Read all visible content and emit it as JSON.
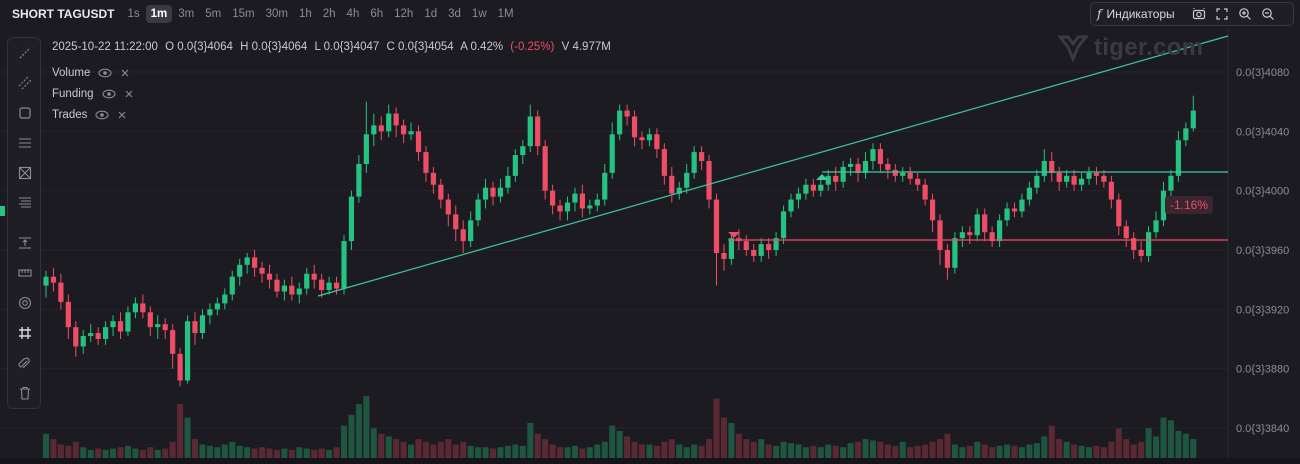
{
  "header": {
    "symbol": "SHORT TAGUSDT",
    "timeframes": [
      "1s",
      "1m",
      "3m",
      "5m",
      "15m",
      "30m",
      "1h",
      "2h",
      "4h",
      "6h",
      "12h",
      "1d",
      "3d",
      "1w",
      "1M"
    ],
    "active_timeframe": "1m",
    "indicators_label": "Индикаторы",
    "right_icons": [
      "camera-icon",
      "fullscreen-icon",
      "zoom-in-icon",
      "zoom-out-icon"
    ]
  },
  "toolbar": {
    "tools": [
      "trend-line-icon",
      "parallel-channel-icon",
      "rectangle-icon",
      "horizontal-lines-icon",
      "box-cross-icon",
      "fib-levels-icon",
      "range-icon",
      "ruler-icon",
      "eye-icon",
      "grid-icon",
      "magnet-icon",
      "trash-icon"
    ]
  },
  "ohlc": {
    "datetime": "2025-10-22 11:22:00",
    "open": "O 0.0{3}4064",
    "high": "H 0.0{3}4064",
    "low": "L 0.0{3}4047",
    "close": "C 0.0{3}4054",
    "amplitude": "A 0.42%",
    "change": "(-0.25%)",
    "volume": "V 4.977M"
  },
  "legend": [
    {
      "name": "Volume"
    },
    {
      "name": "Funding"
    },
    {
      "name": "Trades"
    }
  ],
  "watermark": "tiger.com",
  "measure_badge": "-1.16%",
  "colors": {
    "background": "#1c1b22",
    "up": "#26c281",
    "down": "#ef4d65",
    "trendline": "#3fc9a0",
    "grid": "#26252d"
  },
  "chart_data": {
    "type": "candlestick",
    "price_axis_ticks": [
      "0.0{3}4080",
      "0.0{3}4040",
      "0.0{3}4000",
      "0.0{3}3960",
      "0.0{3}3920",
      "0.0{3}3880",
      "0.0{3}3840"
    ],
    "tick_values": [
      4080,
      4040,
      4000,
      3960,
      3920,
      3880,
      3840
    ],
    "candles": [
      [
        3936,
        3942,
        3928,
        3946
      ],
      [
        3942,
        3938,
        3932,
        3948
      ],
      [
        3938,
        3925,
        3920,
        3944
      ],
      [
        3925,
        3908,
        3900,
        3930
      ],
      [
        3908,
        3895,
        3888,
        3912
      ],
      [
        3895,
        3902,
        3890,
        3906
      ],
      [
        3902,
        3904,
        3898,
        3910
      ],
      [
        3904,
        3900,
        3896,
        3908
      ],
      [
        3900,
        3908,
        3896,
        3912
      ],
      [
        3908,
        3912,
        3902,
        3916
      ],
      [
        3912,
        3905,
        3900,
        3918
      ],
      [
        3905,
        3918,
        3902,
        3922
      ],
      [
        3918,
        3924,
        3914,
        3928
      ],
      [
        3924,
        3918,
        3914,
        3930
      ],
      [
        3918,
        3908,
        3902,
        3922
      ],
      [
        3908,
        3910,
        3900,
        3916
      ],
      [
        3910,
        3906,
        3900,
        3914
      ],
      [
        3906,
        3890,
        3880,
        3910
      ],
      [
        3890,
        3872,
        3868,
        3894
      ],
      [
        3872,
        3912,
        3870,
        3916
      ],
      [
        3912,
        3904,
        3896,
        3918
      ],
      [
        3904,
        3916,
        3900,
        3920
      ],
      [
        3916,
        3920,
        3910,
        3924
      ],
      [
        3920,
        3924,
        3916,
        3928
      ],
      [
        3924,
        3930,
        3920,
        3934
      ],
      [
        3930,
        3942,
        3926,
        3946
      ],
      [
        3942,
        3950,
        3936,
        3954
      ],
      [
        3950,
        3955,
        3944,
        3958
      ],
      [
        3955,
        3948,
        3942,
        3960
      ],
      [
        3948,
        3944,
        3938,
        3952
      ],
      [
        3944,
        3940,
        3934,
        3950
      ],
      [
        3940,
        3932,
        3928,
        3944
      ],
      [
        3932,
        3936,
        3926,
        3940
      ],
      [
        3936,
        3930,
        3926,
        3942
      ],
      [
        3930,
        3934,
        3924,
        3938
      ],
      [
        3934,
        3944,
        3930,
        3948
      ],
      [
        3944,
        3940,
        3934,
        3950
      ],
      [
        3940,
        3933,
        3928,
        3944
      ],
      [
        3933,
        3938,
        3930,
        3942
      ],
      [
        3938,
        3934,
        3930,
        3942
      ],
      [
        3934,
        3966,
        3930,
        3970
      ],
      [
        3966,
        3996,
        3960,
        4000
      ],
      [
        3996,
        4018,
        3992,
        4024
      ],
      [
        4018,
        4038,
        4012,
        4060
      ],
      [
        4038,
        4044,
        4030,
        4052
      ],
      [
        4044,
        4040,
        4034,
        4050
      ],
      [
        4040,
        4052,
        4036,
        4058
      ],
      [
        4052,
        4044,
        4036,
        4056
      ],
      [
        4044,
        4038,
        4032,
        4048
      ],
      [
        4038,
        4040,
        4034,
        4046
      ],
      [
        4040,
        4026,
        4020,
        4044
      ],
      [
        4026,
        4012,
        4006,
        4030
      ],
      [
        4012,
        4004,
        3998,
        4016
      ],
      [
        4004,
        3994,
        3988,
        4008
      ],
      [
        3994,
        3984,
        3976,
        3998
      ],
      [
        3984,
        3974,
        3966,
        3990
      ],
      [
        3974,
        3966,
        3958,
        3980
      ],
      [
        3966,
        3980,
        3962,
        3986
      ],
      [
        3980,
        3994,
        3976,
        3998
      ],
      [
        3994,
        4002,
        3988,
        4008
      ],
      [
        4002,
        3996,
        3990,
        4006
      ],
      [
        3996,
        4002,
        3992,
        4008
      ],
      [
        4002,
        4010,
        3998,
        4016
      ],
      [
        4010,
        4024,
        4006,
        4028
      ],
      [
        4024,
        4030,
        4018,
        4034
      ],
      [
        4030,
        4050,
        4026,
        4058
      ],
      [
        4050,
        4030,
        4024,
        4054
      ],
      [
        4030,
        4000,
        3994,
        4034
      ],
      [
        4000,
        3990,
        3984,
        4004
      ],
      [
        3990,
        3986,
        3980,
        3994
      ],
      [
        3986,
        3992,
        3980,
        3996
      ],
      [
        3992,
        3998,
        3986,
        4002
      ],
      [
        3998,
        3988,
        3982,
        4004
      ],
      [
        3988,
        3990,
        3984,
        3994
      ],
      [
        3990,
        3994,
        3986,
        3998
      ],
      [
        3994,
        4012,
        3990,
        4018
      ],
      [
        4012,
        4038,
        4008,
        4046
      ],
      [
        4038,
        4054,
        4034,
        4058
      ],
      [
        4054,
        4050,
        4044,
        4058
      ],
      [
        4050,
        4036,
        4030,
        4054
      ],
      [
        4036,
        4034,
        4028,
        4040
      ],
      [
        4034,
        4038,
        4030,
        4042
      ],
      [
        4038,
        4028,
        4022,
        4042
      ],
      [
        4028,
        4010,
        4004,
        4032
      ],
      [
        4010,
        3998,
        3992,
        4016
      ],
      [
        3998,
        4002,
        3994,
        4006
      ],
      [
        4002,
        4012,
        3998,
        4018
      ],
      [
        4012,
        4026,
        4008,
        4030
      ],
      [
        4026,
        4020,
        4014,
        4030
      ],
      [
        4020,
        3994,
        3988,
        4024
      ],
      [
        3994,
        3958,
        3936,
        3998
      ],
      [
        3958,
        3954,
        3946,
        3964
      ],
      [
        3954,
        3968,
        3950,
        3972
      ],
      [
        3968,
        3966,
        3960,
        3974
      ],
      [
        3966,
        3960,
        3956,
        3970
      ],
      [
        3960,
        3956,
        3952,
        3964
      ],
      [
        3956,
        3964,
        3952,
        3968
      ],
      [
        3964,
        3960,
        3954,
        3968
      ],
      [
        3960,
        3968,
        3956,
        3972
      ],
      [
        3968,
        3986,
        3964,
        3990
      ],
      [
        3986,
        3994,
        3982,
        3998
      ],
      [
        3994,
        3998,
        3988,
        4002
      ],
      [
        3998,
        4004,
        3994,
        4008
      ],
      [
        4004,
        4000,
        3996,
        4008
      ],
      [
        4000,
        4004,
        3996,
        4008
      ],
      [
        4004,
        4010,
        4000,
        4014
      ],
      [
        4010,
        4006,
        4000,
        4016
      ],
      [
        4006,
        4016,
        4002,
        4020
      ],
      [
        4016,
        4018,
        4010,
        4022
      ],
      [
        4018,
        4012,
        4006,
        4022
      ],
      [
        4012,
        4020,
        4008,
        4026
      ],
      [
        4020,
        4028,
        4014,
        4032
      ],
      [
        4028,
        4018,
        4012,
        4032
      ],
      [
        4018,
        4014,
        4008,
        4022
      ],
      [
        4014,
        4010,
        4006,
        4018
      ],
      [
        4010,
        4012,
        4006,
        4016
      ],
      [
        4012,
        4008,
        4004,
        4016
      ],
      [
        4008,
        4004,
        4000,
        4012
      ],
      [
        4004,
        3994,
        3990,
        4008
      ],
      [
        3994,
        3980,
        3972,
        3998
      ],
      [
        3980,
        3960,
        3950,
        3984
      ],
      [
        3960,
        3948,
        3940,
        3964
      ],
      [
        3948,
        3968,
        3944,
        3972
      ],
      [
        3968,
        3972,
        3962,
        3976
      ],
      [
        3972,
        3970,
        3964,
        3976
      ],
      [
        3970,
        3984,
        3966,
        3988
      ],
      [
        3984,
        3972,
        3966,
        3988
      ],
      [
        3972,
        3966,
        3962,
        3976
      ],
      [
        3966,
        3980,
        3962,
        3984
      ],
      [
        3980,
        3988,
        3976,
        3992
      ],
      [
        3988,
        3986,
        3982,
        3992
      ],
      [
        3986,
        3994,
        3982,
        3998
      ],
      [
        3994,
        4002,
        3990,
        4006
      ],
      [
        4002,
        4010,
        3998,
        4014
      ],
      [
        4010,
        4020,
        4006,
        4028
      ],
      [
        4020,
        4012,
        4006,
        4026
      ],
      [
        4012,
        4006,
        4000,
        4016
      ],
      [
        4006,
        4010,
        4002,
        4014
      ],
      [
        4010,
        4004,
        4000,
        4014
      ],
      [
        4004,
        4008,
        4000,
        4012
      ],
      [
        4008,
        4012,
        4004,
        4016
      ],
      [
        4012,
        4010,
        4004,
        4016
      ],
      [
        4010,
        4006,
        4002,
        4014
      ],
      [
        4006,
        3994,
        3988,
        4010
      ],
      [
        3994,
        3976,
        3970,
        3998
      ],
      [
        3976,
        3968,
        3962,
        3980
      ],
      [
        3968,
        3960,
        3954,
        3972
      ],
      [
        3960,
        3956,
        3952,
        3966
      ],
      [
        3956,
        3972,
        3952,
        3976
      ],
      [
        3972,
        3980,
        3968,
        3986
      ],
      [
        3980,
        4000,
        3976,
        4006
      ],
      [
        4000,
        4010,
        3996,
        4014
      ],
      [
        4010,
        4034,
        4006,
        4040
      ],
      [
        4034,
        4042,
        4030,
        4046
      ],
      [
        4042,
        4054,
        4040,
        4064
      ]
    ],
    "volumes": [
      18,
      14,
      10,
      9,
      12,
      8,
      6,
      7,
      6,
      7,
      8,
      9,
      7,
      6,
      8,
      6,
      7,
      12,
      40,
      30,
      14,
      10,
      9,
      8,
      10,
      12,
      9,
      8,
      7,
      8,
      7,
      6,
      7,
      6,
      8,
      7,
      6,
      7,
      6,
      8,
      24,
      32,
      40,
      46,
      22,
      18,
      16,
      14,
      12,
      10,
      14,
      12,
      10,
      12,
      14,
      10,
      12,
      9,
      8,
      8,
      7,
      8,
      9,
      10,
      9,
      26,
      18,
      14,
      10,
      8,
      8,
      9,
      7,
      8,
      10,
      12,
      24,
      20,
      16,
      12,
      10,
      10,
      9,
      12,
      14,
      10,
      8,
      10,
      9,
      14,
      44,
      30,
      26,
      18,
      14,
      12,
      14,
      10,
      9,
      12,
      11,
      10,
      8,
      9,
      8,
      10,
      9,
      8,
      11,
      12,
      14,
      13,
      12,
      10,
      9,
      12,
      8,
      9,
      10,
      12,
      14,
      18,
      10,
      8,
      9,
      12,
      10,
      8,
      9,
      10,
      9,
      8,
      10,
      11,
      16,
      24,
      14,
      12,
      10,
      9,
      8,
      9,
      8,
      12,
      22,
      14,
      10,
      12,
      22,
      16,
      30,
      28,
      20,
      18,
      14
    ]
  }
}
